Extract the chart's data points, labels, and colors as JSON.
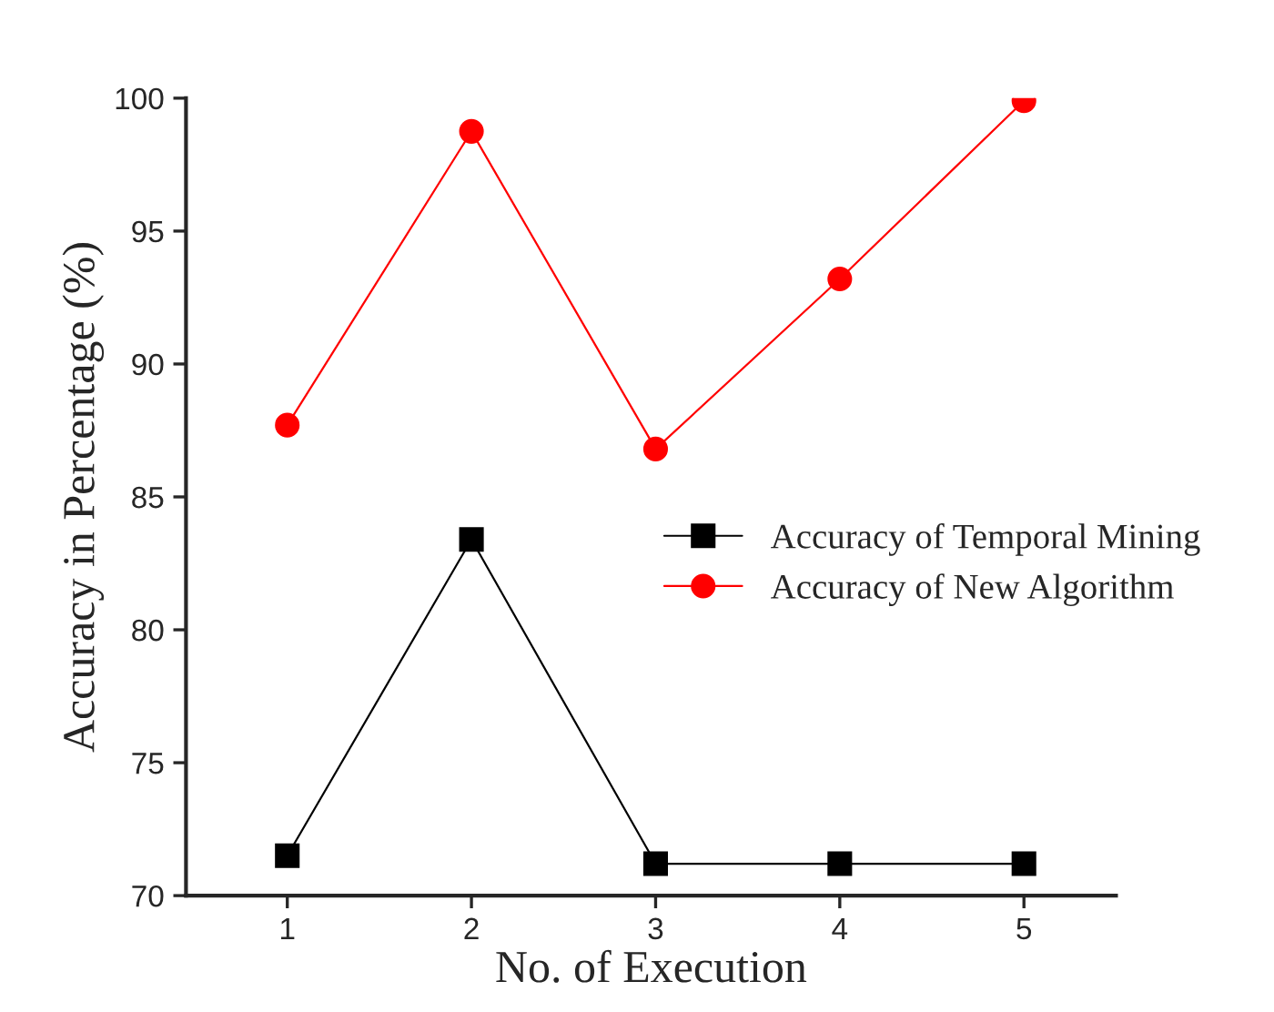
{
  "chart_data": {
    "type": "line",
    "xlabel": "No. of Execution",
    "ylabel": "Accuracy in Percentage (%)",
    "x": [
      1,
      2,
      3,
      4,
      5
    ],
    "series": [
      {
        "name": "Accuracy of Temporal Mining",
        "color": "#000000",
        "marker": "square",
        "values": [
          71.5,
          83.4,
          71.2,
          71.2,
          71.2
        ]
      },
      {
        "name": "Accuracy of New Algorithm",
        "color": "#ff0000",
        "marker": "circle",
        "values": [
          87.7,
          98.75,
          86.8,
          93.2,
          99.9
        ]
      }
    ],
    "xlim": [
      0.45,
      5.5
    ],
    "xticks": [
      1,
      2,
      3,
      4,
      5
    ],
    "ylim": [
      70,
      100
    ],
    "yticks": [
      70,
      75,
      80,
      85,
      90,
      95,
      100
    ],
    "grid": false,
    "legend": "right",
    "line_style": "solid"
  }
}
